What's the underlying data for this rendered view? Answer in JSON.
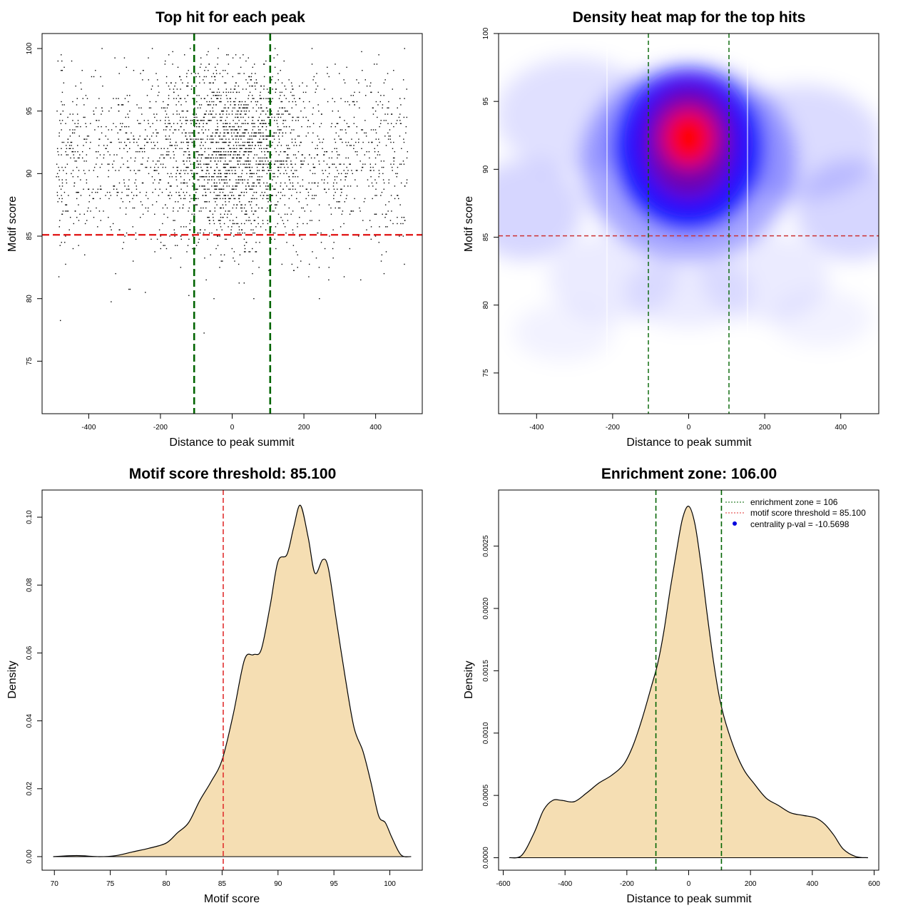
{
  "chart_data": [
    {
      "type": "scatter",
      "title": "Top hit for each peak",
      "xlabel": "Distance to peak summit",
      "ylabel": "Motif score",
      "xlim": [
        -530,
        530
      ],
      "ylim": [
        70.8,
        101.2
      ],
      "xticks": [
        -400,
        -200,
        0,
        200,
        400
      ],
      "yticks": [
        75,
        80,
        85,
        90,
        95,
        100
      ],
      "point_model": {
        "n_points": 3000,
        "x_range": [
          -490,
          490
        ],
        "center_sd": 95,
        "center_fraction": 0.45,
        "y_mean": 91.5,
        "y_sd": 3.8,
        "y_min": 72,
        "y_max": 100
      },
      "hlines": [
        {
          "y": 85.1,
          "color": "#e01010"
        }
      ],
      "vlines": [
        {
          "x": -106,
          "color": "#006400"
        },
        {
          "x": 106,
          "color": "#006400"
        }
      ],
      "grid": false
    },
    {
      "type": "heatmap",
      "title": "Density heat map for the top hits",
      "xlabel": "Distance to peak summit",
      "ylabel": "Motif score",
      "xlim": [
        -500,
        500
      ],
      "ylim": [
        72,
        100
      ],
      "xticks": [
        -400,
        -200,
        0,
        200,
        400
      ],
      "yticks": [
        75,
        80,
        85,
        90,
        95,
        100
      ],
      "density_peak": {
        "x": 0,
        "y": 92.3
      },
      "colors": [
        "#ffffff",
        "#0000ff",
        "#ff0000"
      ],
      "hlines": [
        {
          "y": 85.1,
          "color": "#cc3333"
        }
      ],
      "vlines": [
        {
          "x": -106,
          "color": "#006400"
        },
        {
          "x": 106,
          "color": "#006400"
        }
      ],
      "grid": false
    },
    {
      "type": "area",
      "title": "Motif score threshold: 85.100",
      "xlabel": "Motif score",
      "ylabel": "Density",
      "xlim": [
        68.9,
        102.9
      ],
      "ylim": [
        -0.004,
        0.108
      ],
      "xticks": [
        70,
        75,
        80,
        85,
        90,
        95,
        100
      ],
      "yticks": [
        "0.00",
        "0.02",
        "0.04",
        "0.06",
        "0.08",
        "0.10"
      ],
      "x": [
        69.9,
        72,
        74,
        75.5,
        77,
        78.5,
        80,
        81,
        82,
        83,
        84,
        85,
        86,
        87,
        87.8,
        88.5,
        89.3,
        90,
        90.8,
        91.4,
        92,
        92.7,
        93.3,
        94,
        94.5,
        95.2,
        96,
        96.8,
        97.6,
        98.3,
        99,
        99.6,
        100.2,
        101,
        101.9
      ],
      "values": [
        0,
        0.0003,
        0,
        0.0003,
        0.0014,
        0.0025,
        0.004,
        0.007,
        0.01,
        0.0165,
        0.022,
        0.0285,
        0.042,
        0.058,
        0.0595,
        0.061,
        0.074,
        0.087,
        0.089,
        0.097,
        0.1035,
        0.094,
        0.0835,
        0.0875,
        0.085,
        0.07,
        0.053,
        0.038,
        0.031,
        0.022,
        0.012,
        0.01,
        0.0055,
        0.0005,
        0
      ],
      "fill": "#f5deb3",
      "vlines": [
        {
          "x": 85.1,
          "color": "#e03030"
        }
      ],
      "grid": false
    },
    {
      "type": "area",
      "title": "Enrichment zone: 106.00",
      "xlabel": "Distance to peak summit",
      "ylabel": "Density",
      "xlim": [
        -615,
        615
      ],
      "ylim": [
        -0.0001,
        0.00295
      ],
      "xticks": [
        -600,
        -400,
        -200,
        0,
        200,
        400,
        600
      ],
      "yticks": [
        "0.0000",
        "0.0005",
        "0.0010",
        "0.0015",
        "0.0020",
        "0.0025"
      ],
      "x": [
        -580,
        -540,
        -500,
        -470,
        -440,
        -410,
        -370,
        -330,
        -290,
        -250,
        -210,
        -180,
        -150,
        -120,
        -100,
        -80,
        -60,
        -40,
        -20,
        0,
        20,
        40,
        60,
        80,
        100,
        120,
        150,
        180,
        210,
        250,
        290,
        330,
        370,
        410,
        440,
        470,
        500,
        540,
        580
      ],
      "values": [
        0,
        2e-05,
        0.0002,
        0.00038,
        0.00046,
        0.00046,
        0.00045,
        0.00052,
        0.0006,
        0.00066,
        0.00075,
        0.0009,
        0.00112,
        0.00138,
        0.00156,
        0.00182,
        0.00215,
        0.00245,
        0.00272,
        0.00282,
        0.00268,
        0.00235,
        0.00195,
        0.00158,
        0.00128,
        0.00108,
        0.00086,
        0.0007,
        0.0006,
        0.00048,
        0.00042,
        0.00036,
        0.00034,
        0.00032,
        0.00027,
        0.00018,
        7e-05,
        1e-05,
        0
      ],
      "fill": "#f5deb3",
      "vlines": [
        {
          "x": -106,
          "color": "#006400"
        },
        {
          "x": 106,
          "color": "#006400"
        }
      ],
      "legend": {
        "position": "top-right",
        "entries": [
          "enrichment zone = 106",
          "motif score threshold = 85.100",
          "centrality p-val = -10.5698"
        ]
      },
      "grid": false
    }
  ]
}
